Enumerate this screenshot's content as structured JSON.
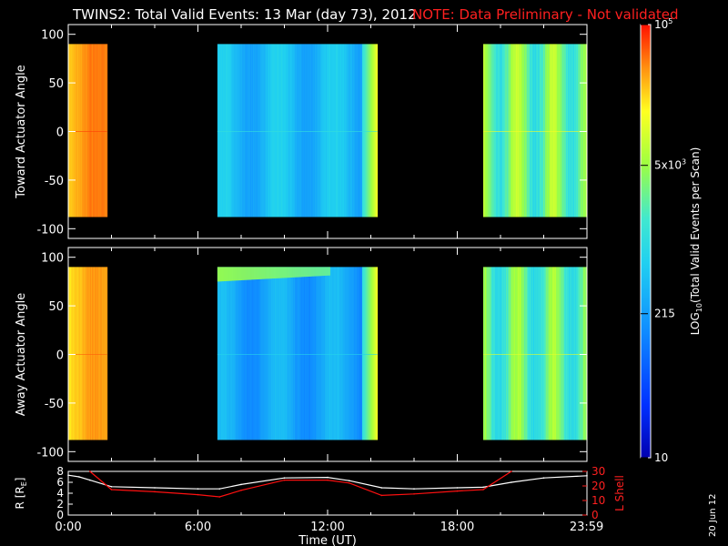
{
  "title": {
    "main": "TWINS2: Total Valid Events: 13 Mar (day  73), 2012",
    "note": "NOTE: Data Preliminary - Not validated",
    "note_color": "#ff2020"
  },
  "stamp": "20 Jun 12",
  "colorbar": {
    "label_pre": "LOG",
    "label_sub": "10",
    "label_post": "(Total Valid Events per Scan)",
    "ticks": [
      {
        "value": "10",
        "log": 1.0
      },
      {
        "value": "215",
        "log": 2.33
      },
      {
        "value": "5x10^3",
        "log": 3.7
      },
      {
        "value": "10^5",
        "log": 5.0
      }
    ],
    "tick_labels": [
      "10",
      "215",
      "5x10",
      "3",
      "10",
      "5"
    ]
  },
  "chart_data": [
    {
      "type": "heatmap",
      "panel": "top",
      "ylabel": "Toward Actuator Angle",
      "ylim": [
        -110,
        110
      ],
      "yticks": [
        -100,
        -50,
        0,
        50,
        100
      ],
      "y_extent": [
        -88,
        90
      ],
      "xlim": [
        0,
        24
      ],
      "z_scale": "log10",
      "segments": [
        {
          "start": 0.0,
          "end": 1.8,
          "level_range": [
            4.3,
            4.7
          ]
        },
        {
          "start": 6.9,
          "end": 14.3,
          "level_range": [
            2.3,
            2.9
          ]
        },
        {
          "start": 19.2,
          "end": 24.0,
          "level_range": [
            2.9,
            4.0
          ]
        }
      ]
    },
    {
      "type": "heatmap",
      "panel": "middle",
      "ylabel": "Away Actuator Angle",
      "ylim": [
        -110,
        110
      ],
      "yticks": [
        -100,
        -50,
        0,
        50,
        100
      ],
      "y_extent": [
        -88,
        90
      ],
      "xlim": [
        0,
        24
      ],
      "z_scale": "log10",
      "segments": [
        {
          "start": 0.0,
          "end": 1.8,
          "level_range": [
            4.2,
            4.6
          ]
        },
        {
          "start": 6.9,
          "end": 14.3,
          "level_range": [
            2.1,
            2.7
          ],
          "high_band": [
            75,
            90
          ]
        },
        {
          "start": 19.2,
          "end": 24.0,
          "level_range": [
            2.8,
            3.9
          ]
        }
      ]
    },
    {
      "type": "line",
      "panel": "bottom",
      "xlabel": "Time (UT)",
      "xlim": [
        0,
        24
      ],
      "xticks": [
        "0:00",
        "6:00",
        "12:00",
        "18:00",
        "23:59"
      ],
      "ylabel_left": "R [R",
      "ylabel_left_sub": "E",
      "ylabel_left_close": "]",
      "ylim_left": [
        0,
        8
      ],
      "yticks_left": [
        0,
        2,
        4,
        6,
        8
      ],
      "ylabel_right": "L Shell",
      "ylim_right": [
        0,
        30
      ],
      "yticks_right": [
        0,
        10,
        20,
        30
      ],
      "series": [
        {
          "axis": "left",
          "color": "#ffffff",
          "x": [
            0,
            0.5,
            1,
            2,
            4,
            6,
            7,
            8,
            10,
            12,
            13,
            14.5,
            16,
            18,
            19.2,
            20.5,
            22,
            24
          ],
          "y": [
            7.3,
            7.0,
            6.4,
            5.2,
            5.0,
            4.8,
            4.8,
            5.6,
            6.8,
            6.9,
            6.3,
            5.0,
            4.8,
            5.0,
            5.1,
            6.0,
            6.8,
            7.2
          ]
        },
        {
          "axis": "right",
          "color": "#ff1010",
          "x": [
            1.0,
            2.0,
            4,
            6,
            7.0,
            8,
            10,
            12,
            13,
            14.5,
            16,
            18,
            19.2,
            20.5
          ],
          "y": [
            30,
            17.5,
            16,
            14,
            12.5,
            17,
            24,
            24,
            22,
            13.5,
            14.5,
            16.5,
            17.5,
            30
          ]
        }
      ]
    }
  ]
}
